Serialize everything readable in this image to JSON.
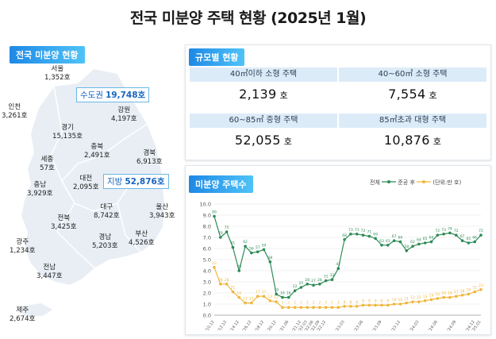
{
  "title": "전국 미분양 주택 현황  (2025년 1월)",
  "map_panel": {
    "tag": "전국 미분양 현황",
    "capital": {
      "label": "수도권",
      "value": "19,748호"
    },
    "regional": {
      "label": "지방",
      "value": "52,876호"
    },
    "regions": [
      {
        "name": "서울",
        "value": "1,352호"
      },
      {
        "name": "인천",
        "value": "3,261호"
      },
      {
        "name": "경기",
        "value": "15,135호"
      },
      {
        "name": "강원",
        "value": "4,197호"
      },
      {
        "name": "충북",
        "value": "2,491호"
      },
      {
        "name": "세종",
        "value": "57호"
      },
      {
        "name": "충남",
        "value": "3,929호"
      },
      {
        "name": "대전",
        "value": "2,095호"
      },
      {
        "name": "경북",
        "value": "6,913호"
      },
      {
        "name": "전북",
        "value": "3,425호"
      },
      {
        "name": "대구",
        "value": "8,742호"
      },
      {
        "name": "울산",
        "value": "3,943호"
      },
      {
        "name": "광주",
        "value": "1,234호"
      },
      {
        "name": "경남",
        "value": "5,203호"
      },
      {
        "name": "부산",
        "value": "4,526호"
      },
      {
        "name": "전남",
        "value": "3,447호"
      },
      {
        "name": "제주",
        "value": "2,674호"
      }
    ]
  },
  "size_panel": {
    "tag": "규모별 현황",
    "unit": "호",
    "cells": [
      {
        "label": "40㎡이하 소형 주택",
        "value": "2,139"
      },
      {
        "label": "40~60㎡ 소형 주택",
        "value": "7,554"
      },
      {
        "label": "60~85㎡ 중형 주택",
        "value": "52,055"
      },
      {
        "label": "85㎡초과 대형 주택",
        "value": "10,876"
      }
    ]
  },
  "chart_panel": {
    "tag": "미분양 주택수",
    "legend_total": "전체",
    "legend_completed": "준공 후",
    "legend_unit": "(단위:만 호)"
  },
  "colors": {
    "total": "#2e8b57",
    "completed": "#f0b73c",
    "accent": "#1e88e5",
    "map_fill": "#e6edf3"
  },
  "chart_data": {
    "type": "line",
    "ylim": [
      0,
      10
    ],
    "yticks": [
      "0.0",
      "1.0",
      "2.0",
      "3.0",
      "4.0",
      "5.0",
      "6.0",
      "7.0",
      "8.0",
      "9.0",
      "10.0"
    ],
    "x": [
      "'10.12",
      "'11.12",
      "'12.12",
      "'13.12",
      "'14.12",
      "'15.12",
      "'16.12",
      "'17.12",
      "'18.12",
      "'19.12",
      "'20.12",
      "'21.03",
      "'21.06",
      "'21.09",
      "'21.12",
      "'22.03",
      "'22.06",
      "'22.09",
      "'22.12",
      "'23.01",
      "'23.02",
      "'23.03",
      "'23.04",
      "'23.05",
      "'23.06",
      "'23.07",
      "'23.08",
      "'23.09",
      "'23.10",
      "'23.11",
      "'23.12",
      "'24.01",
      "'24.02",
      "'24.03",
      "'24.04",
      "'24.05",
      "'24.06",
      "'24.07",
      "'24.08",
      "'24.09",
      "'24.10",
      "'24.11",
      "'24.12",
      "'25.01"
    ],
    "xtick_labels": [
      "'10.12",
      "'12.12",
      "'14.12",
      "'16.12",
      "'18.12",
      "'20.12",
      "'21.06",
      "'21.12",
      "'22.03",
      "'22.06",
      "'22.09",
      "'22.12",
      "'23.03",
      "'23.06",
      "'23.09",
      "'23.12",
      "'24.03",
      "'24.06",
      "'24.09",
      "'24.12",
      "'25.01"
    ],
    "series": [
      {
        "name": "전체",
        "values": [
          8.9,
          7.0,
          7.5,
          6.1,
          4.0,
          6.2,
          5.6,
          5.7,
          5.9,
          4.8,
          1.9,
          1.6,
          1.6,
          2.2,
          2.5,
          2.8,
          2.7,
          2.8,
          3.1,
          3.2,
          4.2,
          6.8,
          7.3,
          7.3,
          7.2,
          7.1,
          6.9,
          6.3,
          6.3,
          6.7,
          6.6,
          5.8,
          6.2,
          6.4,
          6.5,
          6.6,
          7.2,
          7.3,
          7.4,
          7.2,
          6.7,
          6.5,
          6.6,
          7.2
        ]
      },
      {
        "name": "준공 후",
        "values": [
          4.3,
          2.8,
          2.8,
          2.1,
          1.6,
          1.1,
          1.1,
          1.7,
          1.7,
          1.3,
          1.2,
          0.7,
          0.7,
          0.7,
          0.7,
          0.7,
          0.7,
          0.7,
          0.7,
          0.7,
          0.7,
          0.8,
          0.8,
          0.8,
          0.9,
          0.9,
          0.9,
          0.9,
          0.9,
          1.0,
          1.0,
          1.1,
          1.2,
          1.2,
          1.3,
          1.4,
          1.5,
          1.6,
          1.6,
          1.7,
          1.8,
          1.9,
          2.1,
          2.3
        ]
      }
    ]
  }
}
